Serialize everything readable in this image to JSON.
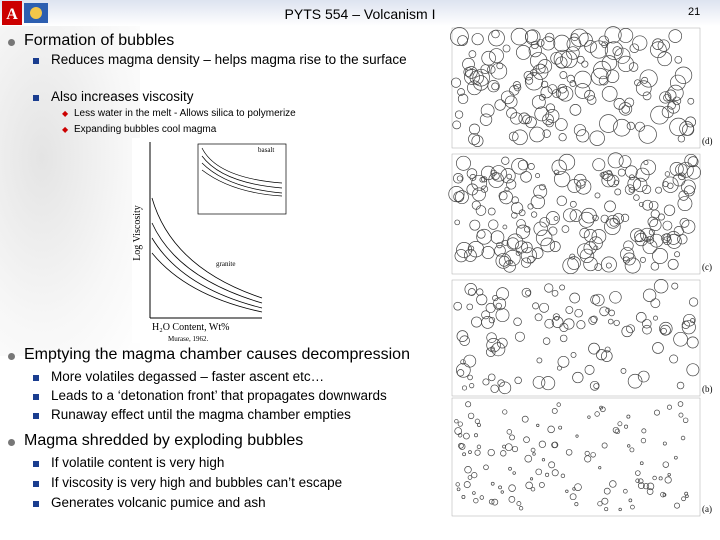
{
  "header": {
    "title": "PYTS 554 – Volcanism I",
    "page_number": "21"
  },
  "sections": [
    {
      "heading": "Formation of bubbles",
      "items": [
        {
          "text": "Reduces magma density – helps magma rise to the surface"
        },
        {
          "text": "Also increases viscosity",
          "subitems": [
            "Less water in the melt - Allows silica to polymerize",
            "Expanding bubbles cool magma"
          ]
        }
      ]
    },
    {
      "heading": "Emptying the magma chamber causes decompression",
      "items": [
        {
          "text": "More volatiles degassed – faster ascent etc…"
        },
        {
          "text": "Leads to a ‘detonation front’ that propagates downwards"
        },
        {
          "text": "Runaway effect until the magma chamber empties"
        }
      ]
    },
    {
      "heading": "Magma shredded by exploding bubbles",
      "items": [
        {
          "text": "If volatile content is very high"
        },
        {
          "text": "If viscosity is very high and bubbles can’t escape"
        },
        {
          "text": "Generates volcanic pumice and ash"
        }
      ]
    }
  ],
  "inset_figure": {
    "y_label": "Log Viscosity",
    "x_label": "H₂O Content, Wt%",
    "inner_label": "basalt",
    "curve_label": "granite",
    "credit": "Murase, 1962."
  },
  "side_figure": {
    "panel_labels": [
      "(d)",
      "(c)",
      "(b)",
      "(a)"
    ]
  }
}
